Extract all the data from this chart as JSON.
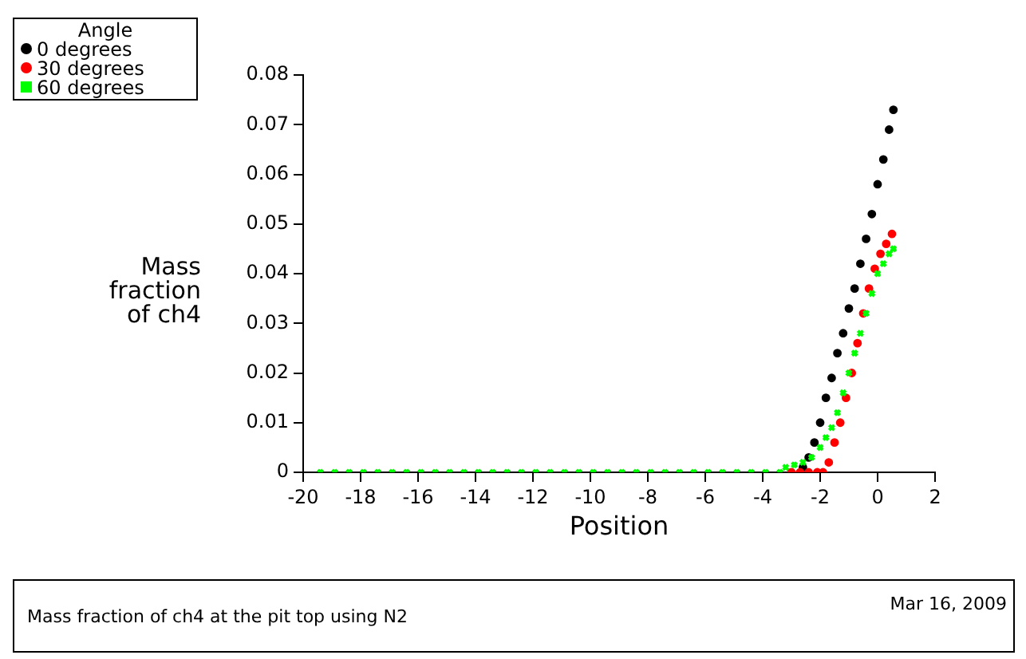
{
  "chart_data": {
    "type": "scatter",
    "xlabel": "Position",
    "ylabel": "Mass fraction of ch4",
    "legend_title": "Angle",
    "legend": "top left",
    "grid": false,
    "xlim": [
      -20,
      2
    ],
    "xticks": [
      -20,
      -18,
      -16,
      -14,
      -12,
      -10,
      -8,
      -6,
      -4,
      -2,
      0,
      2
    ],
    "ylim": [
      0,
      0.08
    ],
    "yticks": [
      0,
      0.01,
      0.02,
      0.03,
      0.04,
      0.05,
      0.06,
      0.07,
      0.08
    ],
    "annotations": [
      "Mass fraction of ch4 at the pit top using N2",
      "Mar 16, 2009"
    ],
    "series": [
      {
        "name": "0 degrees",
        "color": "#000000",
        "marker": "circle",
        "x": [
          -2.6,
          -2.4,
          -2.2,
          -2.0,
          -1.8,
          -1.6,
          -1.4,
          -1.2,
          -1.0,
          -0.8,
          -0.6,
          -0.4,
          -0.2,
          0,
          0.2,
          0.4,
          0.55
        ],
        "values": [
          0.001,
          0.003,
          0.006,
          0.01,
          0.015,
          0.019,
          0.024,
          0.028,
          0.033,
          0.037,
          0.042,
          0.047,
          0.052,
          0.058,
          0.063,
          0.069,
          0.073
        ]
      },
      {
        "name": "30 degrees",
        "color": "#ff0000",
        "marker": "circle",
        "x": [
          -3.0,
          -2.7,
          -2.4,
          -2.1,
          -1.9,
          -1.7,
          -1.5,
          -1.3,
          -1.1,
          -0.9,
          -0.7,
          -0.5,
          -0.3,
          -0.1,
          0.1,
          0.3,
          0.5
        ],
        "values": [
          0,
          0,
          0,
          0,
          0,
          0.002,
          0.006,
          0.01,
          0.015,
          0.02,
          0.026,
          0.032,
          0.037,
          0.041,
          0.044,
          0.046,
          0.048
        ]
      },
      {
        "name": "60 degrees",
        "color": "#00ff00",
        "marker": "cross",
        "x": [
          -19.4,
          -18.9,
          -18.4,
          -17.9,
          -17.4,
          -16.9,
          -16.4,
          -15.9,
          -15.4,
          -14.9,
          -14.4,
          -13.9,
          -13.4,
          -12.9,
          -12.4,
          -11.9,
          -11.4,
          -10.9,
          -10.4,
          -9.9,
          -9.4,
          -8.9,
          -8.4,
          -7.9,
          -7.4,
          -6.9,
          -6.4,
          -5.9,
          -5.4,
          -4.9,
          -4.4,
          -3.9,
          -3.4,
          -3.2,
          -2.9,
          -2.6,
          -2.3,
          -2.0,
          -1.8,
          -1.6,
          -1.4,
          -1.2,
          -1.0,
          -0.8,
          -0.6,
          -0.4,
          -0.2,
          0,
          0.2,
          0.4,
          0.55
        ],
        "values": [
          0,
          0,
          0,
          0,
          0,
          0,
          0,
          0,
          0,
          0,
          0,
          0,
          0,
          0,
          0,
          0,
          0,
          0,
          0,
          0,
          0,
          0,
          0,
          0,
          0,
          0,
          0,
          0,
          0,
          0,
          0,
          0,
          0,
          0.001,
          0.0015,
          0.002,
          0.003,
          0.005,
          0.007,
          0.009,
          0.012,
          0.016,
          0.02,
          0.024,
          0.028,
          0.032,
          0.036,
          0.04,
          0.042,
          0.044,
          0.045
        ]
      }
    ]
  }
}
